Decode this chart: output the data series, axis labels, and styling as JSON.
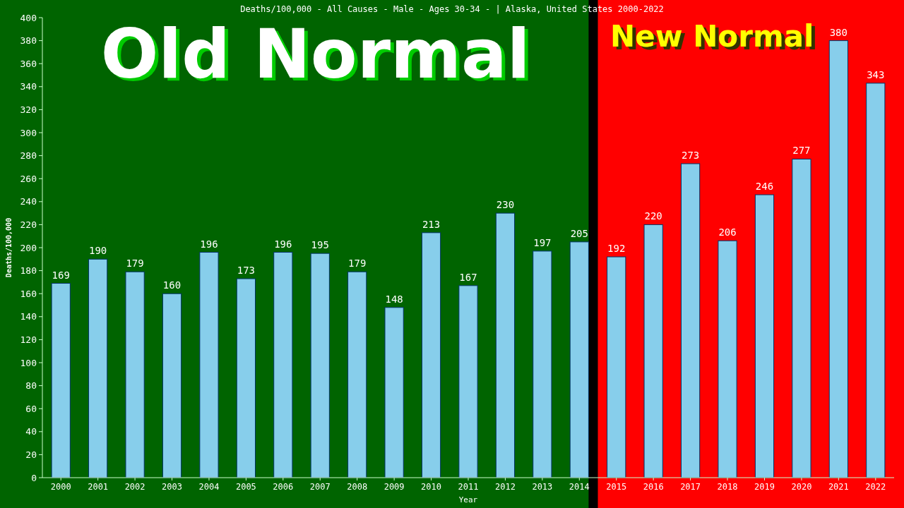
{
  "chart_data": {
    "type": "bar",
    "title": "Deaths/100,000 - All Causes - Male - Ages 30-34 -  | Alaska, United States 2000-2022",
    "xlabel": "Year",
    "ylabel": "Deaths/100,000",
    "categories": [
      "2000",
      "2001",
      "2002",
      "2003",
      "2004",
      "2005",
      "2006",
      "2007",
      "2008",
      "2009",
      "2010",
      "2011",
      "2012",
      "2013",
      "2014",
      "2015",
      "2016",
      "2017",
      "2018",
      "2019",
      "2020",
      "2021",
      "2022"
    ],
    "values": [
      169,
      190,
      179,
      160,
      196,
      173,
      196,
      195,
      179,
      148,
      213,
      167,
      230,
      197,
      205,
      192,
      220,
      273,
      206,
      246,
      277,
      380,
      343
    ],
    "color": "#87ceeb",
    "ylim": [
      0,
      400
    ],
    "yticks": [
      0,
      20,
      40,
      60,
      80,
      100,
      120,
      140,
      160,
      180,
      200,
      220,
      240,
      260,
      280,
      300,
      320,
      340,
      360,
      380,
      400
    ],
    "data_labels": true,
    "bands": [
      {
        "axis": "x",
        "from": "2000",
        "to": "2014",
        "label": "Old Normal",
        "color": "#006400"
      },
      {
        "axis": "x",
        "from": "2015",
        "to": "2022",
        "label": "New Normal",
        "color": "#ff0000"
      }
    ]
  }
}
